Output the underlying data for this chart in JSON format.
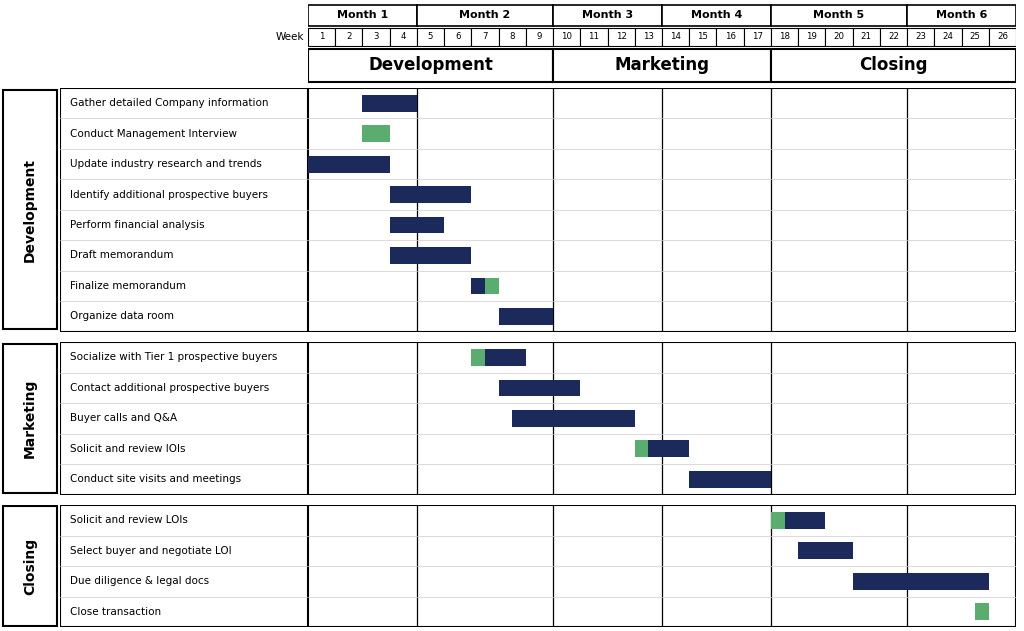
{
  "dark_blue": "#1B2A5A",
  "green": "#5BAD6F",
  "months": [
    "Month 1",
    "Month 2",
    "Month 3",
    "Month 4",
    "Month 5",
    "Month 6"
  ],
  "month_starts": [
    1,
    5,
    10,
    14,
    18,
    23
  ],
  "month_ends": [
    4,
    9,
    13,
    17,
    22,
    26
  ],
  "weeks": [
    1,
    2,
    3,
    4,
    5,
    6,
    7,
    8,
    9,
    10,
    11,
    12,
    13,
    14,
    15,
    16,
    17,
    18,
    19,
    20,
    21,
    22,
    23,
    24,
    25,
    26
  ],
  "phase_labels": [
    "Development",
    "Marketing",
    "Closing"
  ],
  "phase_starts": [
    1,
    10,
    18
  ],
  "phase_ends": [
    9,
    17,
    26
  ],
  "month_boundaries": [
    4.5,
    9.5,
    13.5,
    17.5,
    22.5
  ],
  "sections": [
    {
      "name": "Development",
      "tasks": [
        {
          "label": "Gather detailed Company information",
          "bars": [
            {
              "s": 3,
              "e": 5,
              "c": "B"
            }
          ]
        },
        {
          "label": "Conduct Management Interview",
          "bars": [
            {
              "s": 3,
              "e": 4,
              "c": "G"
            }
          ]
        },
        {
          "label": "Update industry research and trends",
          "bars": [
            {
              "s": 1,
              "e": 4,
              "c": "B"
            }
          ]
        },
        {
          "label": "Identify additional prospective buyers",
          "bars": [
            {
              "s": 4,
              "e": 7,
              "c": "B"
            }
          ]
        },
        {
          "label": "Perform financial analysis",
          "bars": [
            {
              "s": 4,
              "e": 6,
              "c": "B"
            }
          ]
        },
        {
          "label": "Draft memorandum",
          "bars": [
            {
              "s": 4,
              "e": 7,
              "c": "B"
            }
          ]
        },
        {
          "label": "Finalize memorandum",
          "bars": [
            {
              "s": 7,
              "e": 7.5,
              "c": "B"
            },
            {
              "s": 7.5,
              "e": 8,
              "c": "G"
            }
          ]
        },
        {
          "label": "Organize data room",
          "bars": [
            {
              "s": 8,
              "e": 10,
              "c": "B"
            }
          ]
        }
      ]
    },
    {
      "name": "Marketing",
      "tasks": [
        {
          "label": "Socialize with Tier 1 prospective buyers",
          "bars": [
            {
              "s": 7,
              "e": 7.5,
              "c": "G"
            },
            {
              "s": 7.5,
              "e": 9,
              "c": "B"
            }
          ]
        },
        {
          "label": "Contact additional prospective buyers",
          "bars": [
            {
              "s": 8,
              "e": 11,
              "c": "B"
            }
          ]
        },
        {
          "label": "Buyer calls and Q&A",
          "bars": [
            {
              "s": 8.5,
              "e": 13,
              "c": "B"
            }
          ]
        },
        {
          "label": "Solicit and review IOIs",
          "bars": [
            {
              "s": 13,
              "e": 13.5,
              "c": "G"
            },
            {
              "s": 13.5,
              "e": 15,
              "c": "B"
            }
          ]
        },
        {
          "label": "Conduct site visits and meetings",
          "bars": [
            {
              "s": 15,
              "e": 18,
              "c": "B"
            }
          ]
        }
      ]
    },
    {
      "name": "Closing",
      "tasks": [
        {
          "label": "Solicit and review LOIs",
          "bars": [
            {
              "s": 18,
              "e": 18.5,
              "c": "G"
            },
            {
              "s": 18.5,
              "e": 20,
              "c": "B"
            }
          ]
        },
        {
          "label": "Select buyer and negotiate LOI",
          "bars": [
            {
              "s": 19,
              "e": 21,
              "c": "B"
            }
          ]
        },
        {
          "label": "Due diligence & legal docs",
          "bars": [
            {
              "s": 21,
              "e": 26,
              "c": "B"
            }
          ]
        },
        {
          "label": "Close transaction",
          "bars": [
            {
              "s": 25.5,
              "e": 26,
              "c": "G"
            }
          ]
        }
      ]
    }
  ]
}
